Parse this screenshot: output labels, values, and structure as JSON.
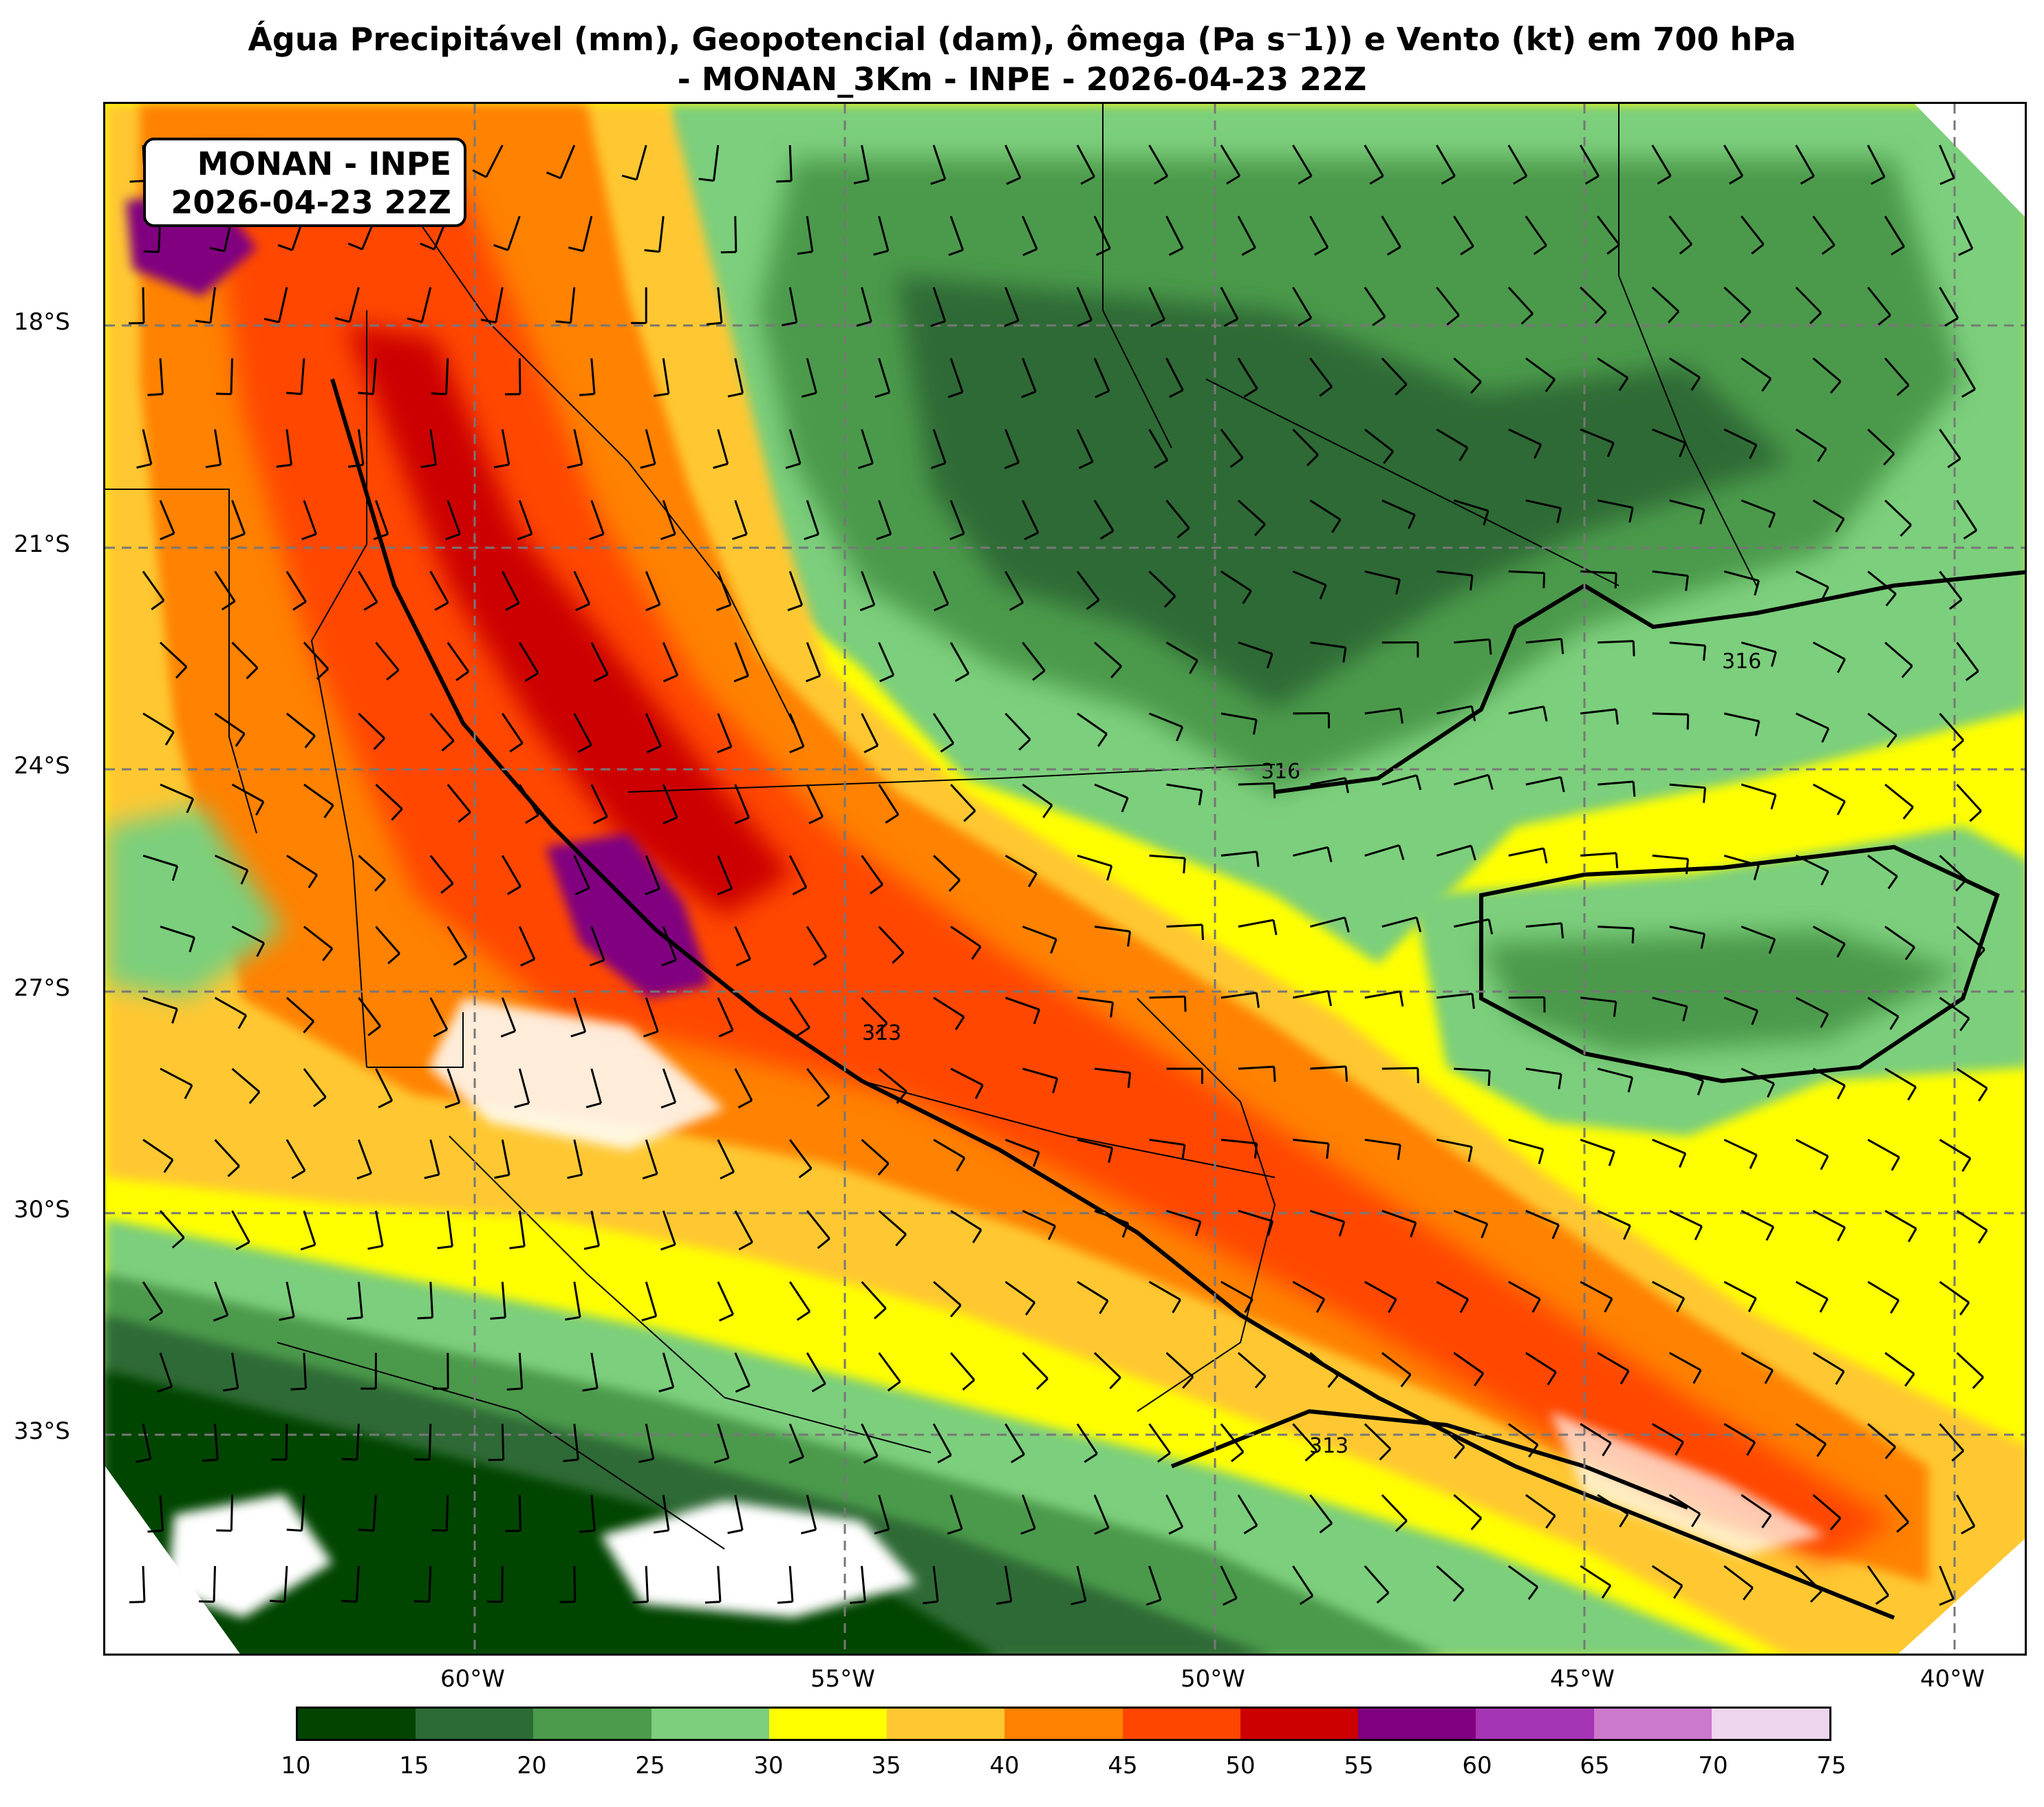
{
  "title": {
    "line1": "Água Precipitável (mm), Geopotencial (dam), ômega (Pa s⁻1)) e Vento (kt) em 700 hPa",
    "line2": "- MONAN_3Km - INPE - 2026-04-23 22Z"
  },
  "badge": {
    "line1": "MONAN - INPE",
    "line2": "2026-04-23 22Z"
  },
  "lat_labels": [
    "18°S",
    "21°S",
    "24°S",
    "27°S",
    "30°S",
    "33°S"
  ],
  "lon_labels": [
    "60°W",
    "55°W",
    "50°W",
    "45°W",
    "40°W"
  ],
  "geopotential_contour_labels": [
    "316",
    "313"
  ],
  "colorbar": {
    "ticks": [
      "10",
      "15",
      "20",
      "25",
      "30",
      "35",
      "40",
      "45",
      "50",
      "55",
      "60",
      "65",
      "70",
      "75"
    ],
    "colors": [
      "#004400",
      "#2d6b34",
      "#4c9a4c",
      "#7ccf7c",
      "#ffff00",
      "#ffc832",
      "#ff8200",
      "#ff4600",
      "#cc0000",
      "#800080",
      "#a534b5",
      "#cc79cc",
      "#eed6ee"
    ]
  }
}
